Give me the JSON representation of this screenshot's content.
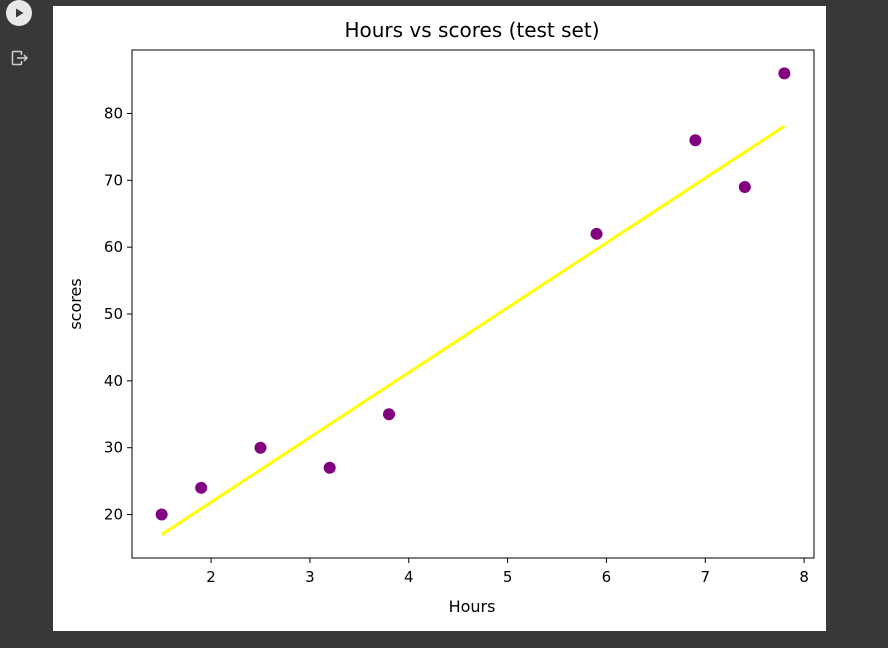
{
  "cell": {
    "run_icon": "play-icon",
    "output_icon": "output-redirect-icon"
  },
  "chart_data": {
    "type": "scatter",
    "title": "Hours vs scores (test set)",
    "xlabel": "Hours",
    "ylabel": "scores",
    "xlim": [
      1.2,
      8.1
    ],
    "ylim": [
      13.5,
      89.5
    ],
    "xticks": [
      2,
      3,
      4,
      5,
      6,
      7,
      8
    ],
    "yticks": [
      20,
      30,
      40,
      50,
      60,
      70,
      80
    ],
    "grid": false,
    "series": [
      {
        "kind": "scatter",
        "color": "#800080",
        "points": [
          [
            1.5,
            20
          ],
          [
            1.9,
            24
          ],
          [
            2.5,
            30
          ],
          [
            3.2,
            27
          ],
          [
            3.8,
            35
          ],
          [
            5.9,
            62
          ],
          [
            6.9,
            76
          ],
          [
            7.4,
            69
          ],
          [
            7.8,
            86
          ]
        ]
      },
      {
        "kind": "line",
        "color": "#ffff00",
        "points": [
          [
            1.5,
            17.0
          ],
          [
            7.8,
            78.1
          ]
        ]
      }
    ]
  }
}
